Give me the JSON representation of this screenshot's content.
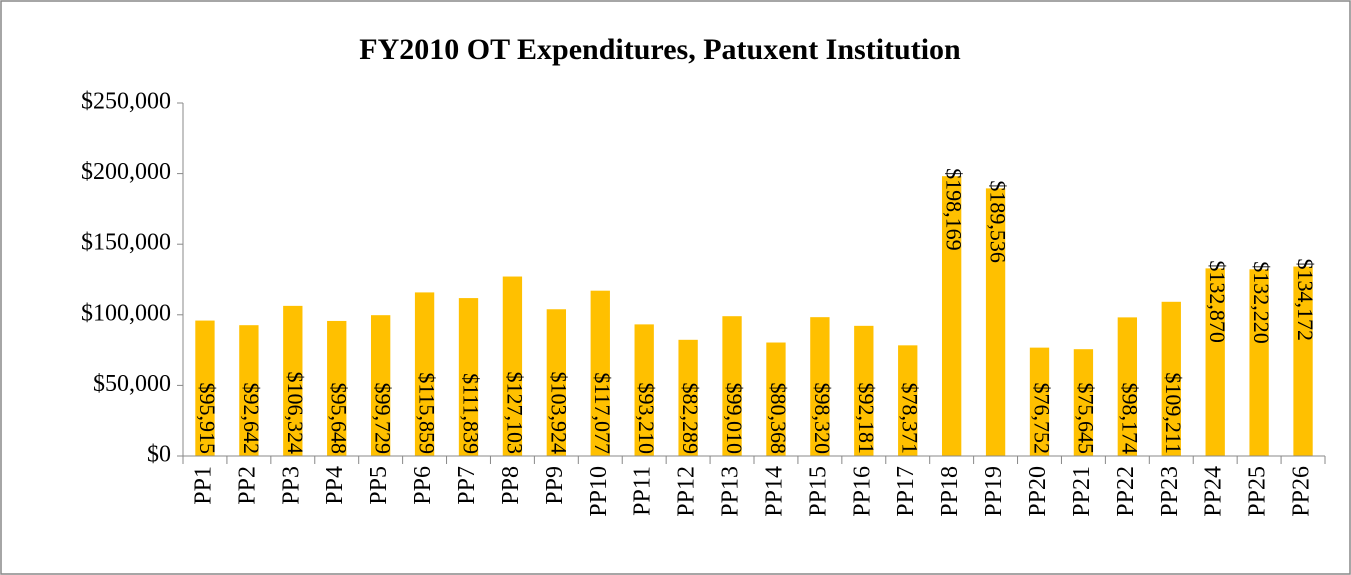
{
  "chart_data": {
    "type": "bar",
    "title": "FY2010 OT Expenditures, Patuxent Institution",
    "categories": [
      "PP1",
      "PP2",
      "PP3",
      "PP4",
      "PP5",
      "PP6",
      "PP7",
      "PP8",
      "PP9",
      "PP10",
      "PP11",
      "PP12",
      "PP13",
      "PP14",
      "PP15",
      "PP16",
      "PP17",
      "PP18",
      "PP19",
      "PP20",
      "PP21",
      "PP22",
      "PP23",
      "PP24",
      "PP25",
      "PP26"
    ],
    "values": [
      95915,
      92642,
      106324,
      95648,
      99729,
      115859,
      111839,
      127103,
      103924,
      117077,
      93210,
      82289,
      99010,
      80368,
      98320,
      92181,
      78371,
      198169,
      189536,
      76752,
      75645,
      98174,
      109211,
      132870,
      132220,
      134172
    ],
    "value_labels": [
      "$95,915",
      "$92,642",
      "$106,324",
      "$95,648",
      "$99,729",
      "$115,859",
      "$111,839",
      "$127,103",
      "$103,924",
      "$117,077",
      "$93,210",
      "$82,289",
      "$99,010",
      "$80,368",
      "$98,320",
      "$92,181",
      "$78,371",
      "$198,169",
      "$189,536",
      "$76,752",
      "$75,645",
      "$98,174",
      "$109,211",
      "$132,870",
      "$132,220",
      "$134,172"
    ],
    "color": "#ffc000",
    "ylim": [
      0,
      250000
    ],
    "yticks": [
      {
        "value": 0,
        "label": "$0"
      },
      {
        "value": 50000,
        "label": "$50,000"
      },
      {
        "value": 100000,
        "label": "$100,000"
      },
      {
        "value": 150000,
        "label": "$150,000"
      },
      {
        "value": 200000,
        "label": "$200,000"
      },
      {
        "value": 250000,
        "label": "$250,000"
      }
    ],
    "grid": false
  }
}
